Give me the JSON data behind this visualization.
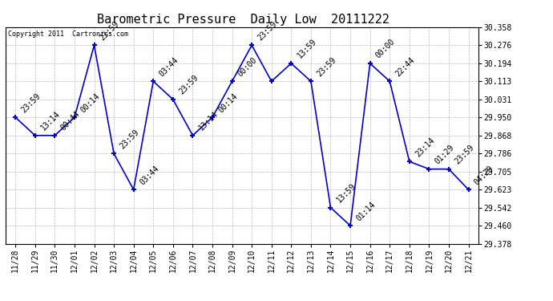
{
  "title": "Barometric Pressure  Daily Low  20111222",
  "copyright": "Copyright 2011  Cartronics.com",
  "x_labels": [
    "11/28",
    "11/29",
    "11/30",
    "12/01",
    "12/02",
    "12/03",
    "12/04",
    "12/05",
    "12/06",
    "12/07",
    "12/08",
    "12/09",
    "12/10",
    "12/11",
    "12/12",
    "12/13",
    "12/14",
    "12/15",
    "12/16",
    "12/17",
    "12/18",
    "12/19",
    "12/20",
    "12/21"
  ],
  "y_values": [
    29.95,
    29.868,
    29.868,
    29.95,
    30.276,
    29.786,
    29.623,
    30.113,
    30.031,
    29.868,
    29.95,
    30.113,
    30.276,
    30.113,
    30.194,
    30.113,
    29.542,
    29.46,
    30.194,
    30.113,
    29.75,
    29.716,
    29.716,
    29.623
  ],
  "point_labels": [
    "23:59",
    "13:14",
    "00:44",
    "00:14",
    "23:59",
    "23:59",
    "03:44",
    "03:44",
    "23:59",
    "13:14",
    "00:14",
    "00:00",
    "23:59",
    "",
    "13:59",
    "23:59",
    "13:59",
    "01:14",
    "00:00",
    "22:44",
    "23:14",
    "01:29",
    "23:59",
    "04:29"
  ],
  "y_ticks": [
    29.378,
    29.46,
    29.542,
    29.623,
    29.705,
    29.786,
    29.868,
    29.95,
    30.031,
    30.113,
    30.194,
    30.276,
    30.358
  ],
  "ylim": [
    29.378,
    30.358
  ],
  "line_color": "#0000cc",
  "marker_color": "#0000cc",
  "background_color": "#ffffff",
  "grid_color": "#bbbbbb",
  "title_fontsize": 11,
  "tick_fontsize": 7,
  "annotation_fontsize": 7,
  "copyright_fontsize": 6
}
